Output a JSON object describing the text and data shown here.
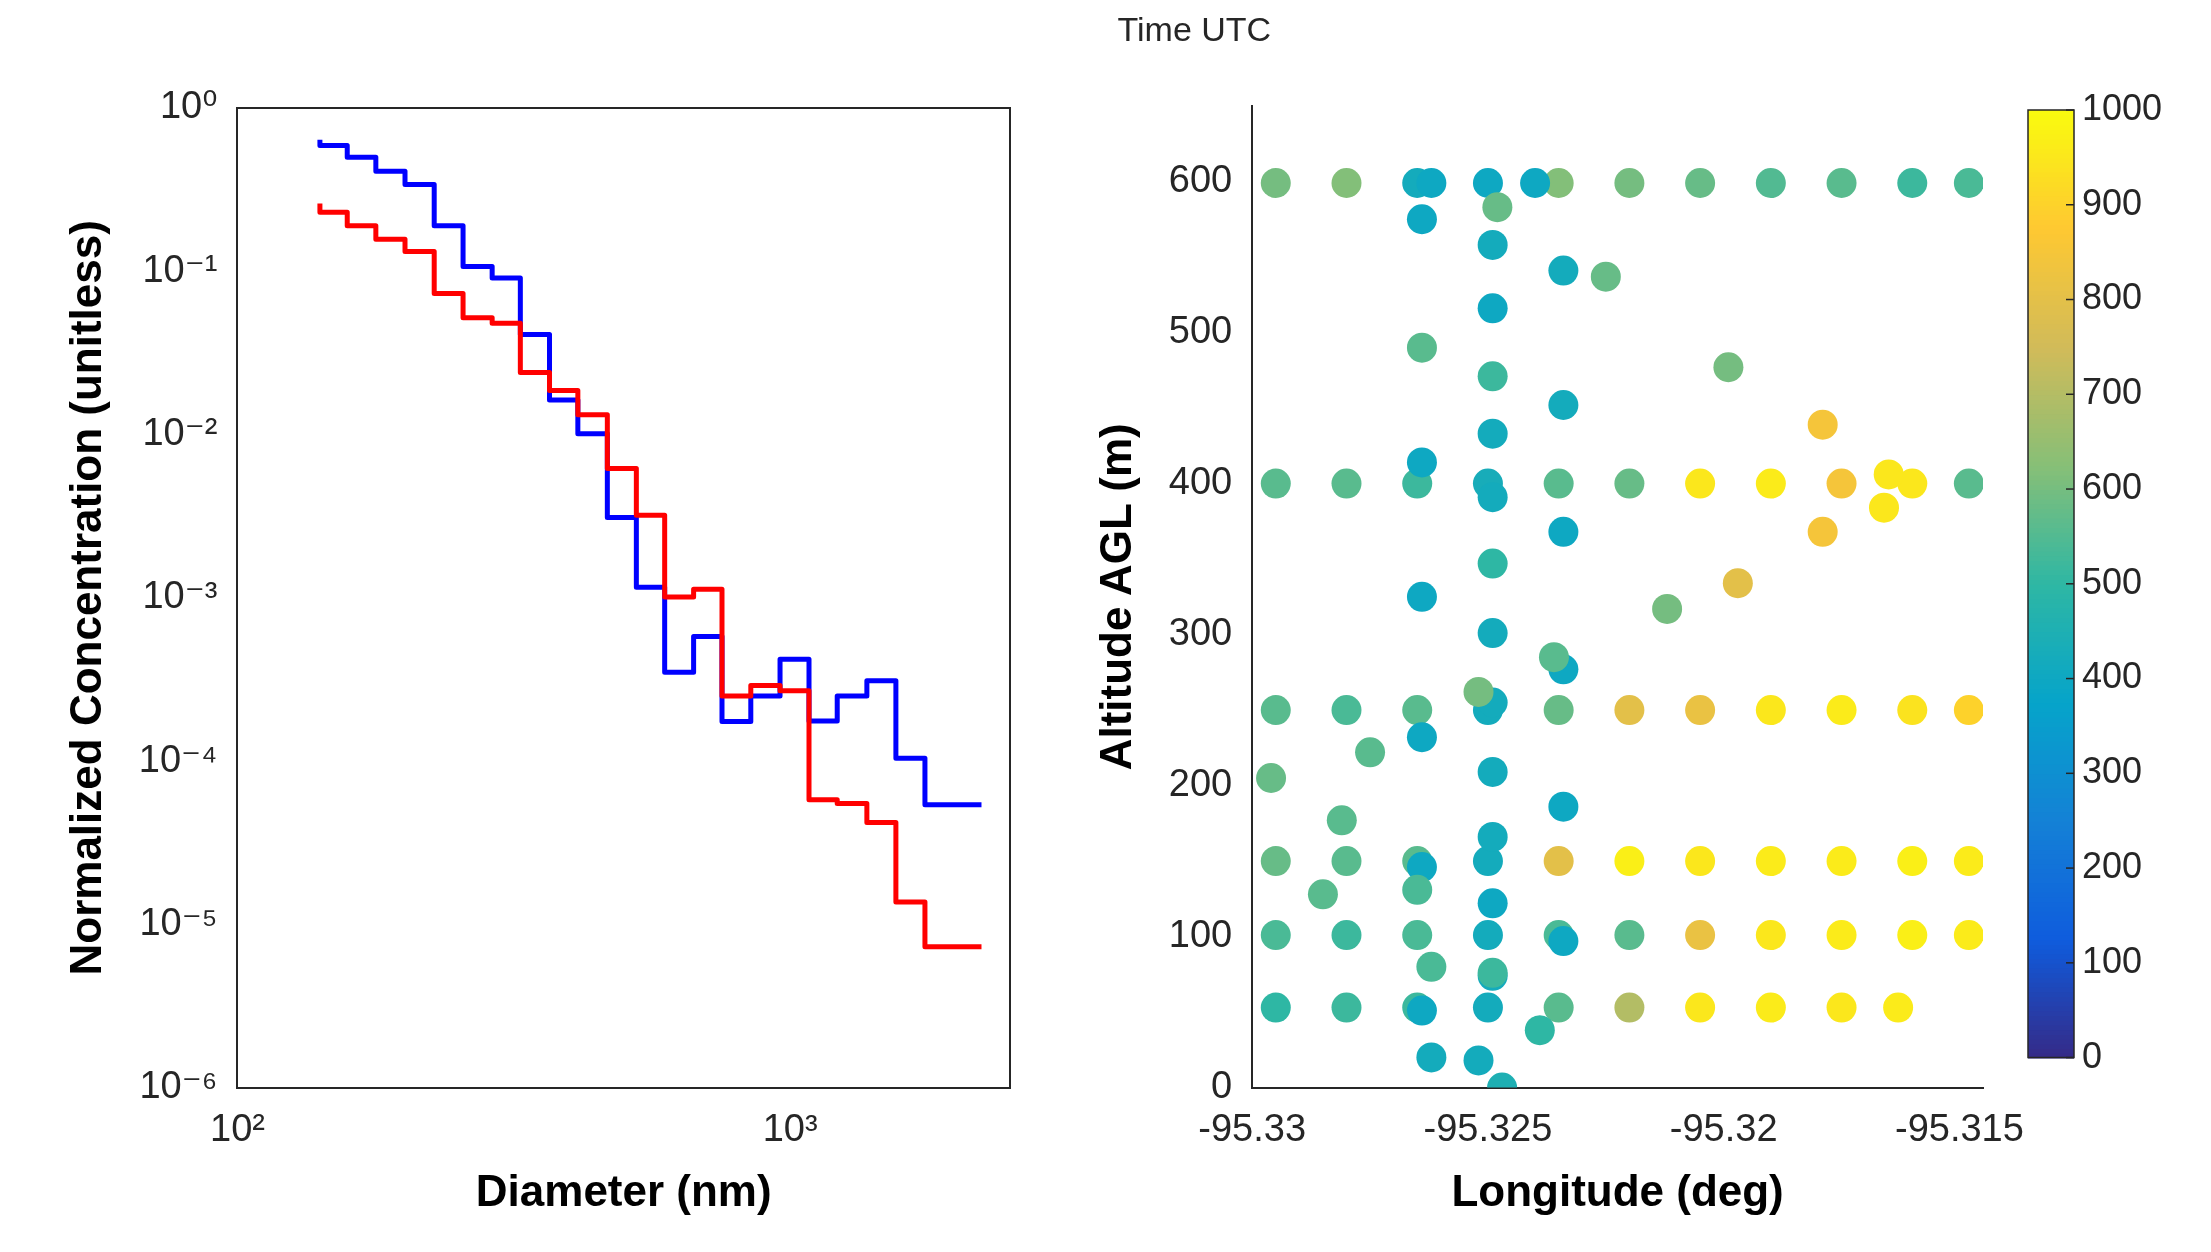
{
  "chart_data": [
    {
      "type": "step",
      "xlabel": "Diameter (nm)",
      "ylabel": "Normalized Concentration (unitless)",
      "log": "xy",
      "xlim": [
        100,
        2500
      ],
      "ylim": [
        1e-06,
        1
      ],
      "xticks": [
        {
          "value": 100,
          "label": "10²"
        },
        {
          "value": 1000,
          "label": "10³"
        }
      ],
      "yticks": [
        {
          "value": 1e-06,
          "label": "10⁻⁶"
        },
        {
          "value": 1e-05,
          "label": "10⁻⁵"
        },
        {
          "value": 0.0001,
          "label": "10⁻⁴"
        },
        {
          "value": 0.001,
          "label": "10⁻³"
        },
        {
          "value": 0.01,
          "label": "10⁻²"
        },
        {
          "value": 0.1,
          "label": "10⁻¹"
        },
        {
          "value": 1,
          "label": "10⁰"
        }
      ],
      "x": [
        141,
        158,
        178,
        201,
        227,
        256,
        289,
        325,
        367,
        413,
        467,
        527,
        593,
        669,
        753,
        849,
        959,
        1082,
        1217,
        1377,
        1554,
        1754,
        1972,
        2220
      ],
      "series": [
        {
          "color": "#ff0000",
          "values": [
            0.26,
            0.23,
            0.19,
            0.157,
            0.132,
            0.073,
            0.052,
            0.048,
            0.024,
            0.0186,
            0.0132,
            0.0062,
            0.0032,
            0.00101,
            0.00113,
            0.00025,
            0.00029,
            0.00027,
            5.8e-05,
            5.5e-05,
            4.2e-05,
            1.37e-05,
            7.3e-06,
            7.3e-06
          ]
        },
        {
          "color": "#0000ff",
          "values": [
            0.64,
            0.59,
            0.5,
            0.41,
            0.34,
            0.19,
            0.107,
            0.091,
            0.041,
            0.0163,
            0.0101,
            0.0031,
            0.00116,
            0.00035,
            0.00058,
            0.000175,
            0.00025,
            0.00042,
            0.000176,
            0.00025,
            0.00031,
            0.000104,
            5.4e-05,
            5.4e-05
          ]
        }
      ]
    },
    {
      "type": "scatter",
      "xlabel": "Longitude (deg)",
      "ylabel": "Altitude AGL (m)",
      "annotations": [
        "Time UTC"
      ],
      "xlim": [
        -95.33,
        -95.3145
      ],
      "ylim": [
        0,
        650
      ],
      "xticks": [
        -95.33,
        -95.325,
        -95.32,
        -95.315
      ],
      "yticks": [
        0,
        100,
        200,
        300,
        400,
        500,
        600
      ],
      "clim": [
        0,
        1000
      ],
      "cticks": [
        0,
        100,
        200,
        300,
        400,
        500,
        600,
        700,
        800,
        900,
        1000
      ],
      "x": [
        -95.3295,
        -95.328,
        -95.3265,
        -95.325,
        -95.3235,
        -95.322,
        -95.3205,
        -95.319,
        -95.3175,
        -95.316,
        -95.3148,
        -95.3295,
        -95.328,
        -95.3265,
        -95.325,
        -95.3235,
        -95.322,
        -95.3205,
        -95.319,
        -95.3175,
        -95.316,
        -95.3148,
        -95.3295,
        -95.328,
        -95.3265,
        -95.325,
        -95.3235,
        -95.322,
        -95.3205,
        -95.319,
        -95.3175,
        -95.316,
        -95.3148,
        -95.3295,
        -95.328,
        -95.3265,
        -95.325,
        -95.3235,
        -95.322,
        -95.3205,
        -95.319,
        -95.3175,
        -95.316,
        -95.3148,
        -95.3295,
        -95.328,
        -95.3265,
        -95.325,
        -95.3235,
        -95.322,
        -95.3205,
        -95.319,
        -95.3175,
        -95.316,
        -95.3148,
        -95.3295,
        -95.328,
        -95.3265,
        -95.325,
        -95.3235,
        -95.322,
        -95.3205,
        -95.319,
        -95.3175,
        -95.3163,
        -95.3262,
        -95.324,
        -95.3264,
        -95.3249,
        -95.3234,
        -95.3249,
        -95.3264,
        -95.3249,
        -95.3234,
        -95.3249,
        -95.3264,
        -95.3249,
        -95.3234,
        -95.3249,
        -95.3264,
        -95.3249,
        -95.3234,
        -95.3249,
        -95.3264,
        -95.3249,
        -95.3234,
        -95.3249,
        -95.3264,
        -95.3249,
        -95.3234,
        -95.3249,
        -95.3264,
        -95.3262,
        -95.3252,
        -95.3248,
        -95.3225,
        -95.3199,
        -95.3179,
        -95.3165,
        -95.3166,
        -95.3179,
        -95.3197,
        -95.3212,
        -95.3236,
        -95.3252,
        -95.3275,
        -95.3296,
        -95.3281,
        -95.3265,
        -95.3249,
        -95.3239,
        -95.3247,
        -95.3285,
        -95.3262
      ],
      "values": [
        599,
        599,
        599,
        599,
        599,
        599,
        599,
        599,
        599,
        599,
        599,
        400,
        400,
        400,
        400,
        400,
        400,
        400,
        400,
        400,
        400,
        400,
        250,
        250,
        250,
        250,
        250,
        250,
        250,
        250,
        250,
        250,
        250,
        150,
        150,
        150,
        150,
        150,
        150,
        150,
        150,
        150,
        150,
        150,
        101,
        101,
        101,
        101,
        101,
        101,
        101,
        101,
        101,
        101,
        101,
        53,
        53,
        53,
        53,
        53,
        53,
        53,
        53,
        53,
        53,
        599,
        599,
        575,
        558,
        541,
        516,
        490,
        471,
        452,
        433,
        414,
        391,
        368,
        347,
        325,
        301,
        277,
        255,
        232,
        209,
        186,
        166,
        146,
        122,
        97,
        74,
        51,
        20,
        18,
        583,
        537,
        477,
        439,
        406,
        384,
        368,
        334,
        317,
        285,
        262,
        222,
        205,
        177,
        131,
        76,
        38,
        0,
        128,
        80
      ],
      "cvalues": [
        600,
        620,
        420,
        400,
        620,
        600,
        580,
        550,
        560,
        520,
        540,
        560,
        560,
        520,
        430,
        560,
        580,
        950,
        960,
        850,
        950,
        560,
        560,
        540,
        560,
        420,
        580,
        800,
        820,
        950,
        960,
        940,
        900,
        580,
        560,
        560,
        420,
        800,
        970,
        950,
        960,
        960,
        970,
        960,
        540,
        520,
        540,
        420,
        540,
        560,
        820,
        950,
        960,
        970,
        960,
        500,
        520,
        520,
        420,
        560,
        700,
        950,
        960,
        950,
        960,
        400,
        400,
        400,
        420,
        420,
        400,
        560,
        520,
        420,
        420,
        400,
        420,
        400,
        500,
        400,
        420,
        400,
        420,
        400,
        420,
        400,
        420,
        400,
        400,
        400,
        420,
        400,
        420,
        420,
        580,
        580,
        600,
        850,
        950,
        950,
        850,
        800,
        600,
        560,
        600,
        560,
        580,
        560,
        540,
        520,
        500,
        450,
        560,
        540
      ]
    }
  ]
}
